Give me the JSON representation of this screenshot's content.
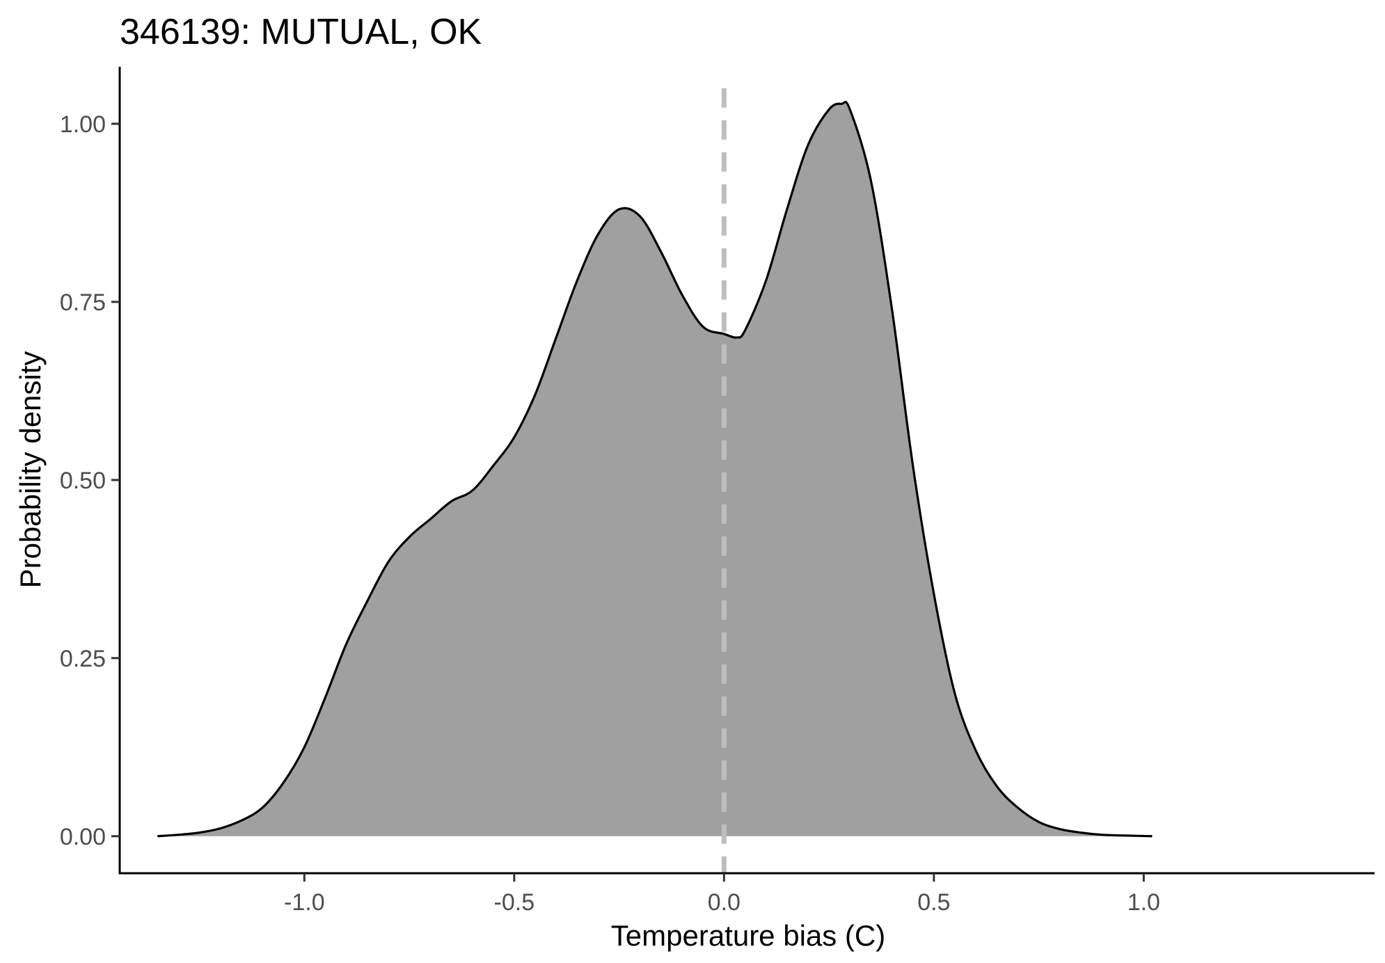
{
  "chart_data": {
    "type": "area",
    "title": "346139: MUTUAL, OK",
    "xlabel": "Temperature bias (C)",
    "ylabel": "Probability density",
    "xlim": [
      -1.44,
      1.55
    ],
    "ylim": [
      -0.052,
      1.08
    ],
    "x_ticks": [
      -1.0,
      -0.5,
      0.0,
      0.5,
      1.0
    ],
    "x_tick_labels": [
      "-1.0",
      "-0.5",
      "0.0",
      "0.5",
      "1.0"
    ],
    "y_ticks": [
      0.0,
      0.25,
      0.5,
      0.75,
      1.0
    ],
    "y_tick_labels": [
      "0.00",
      "0.25",
      "0.50",
      "0.75",
      "1.00"
    ],
    "reference_line": {
      "x": 0.0,
      "style": "dashed",
      "color": "#bebebe"
    },
    "fill_color": "#a0a0a0",
    "line_color": "#000000",
    "grid": false,
    "series": [
      {
        "name": "density",
        "x": [
          -1.35,
          -1.3,
          -1.25,
          -1.2,
          -1.15,
          -1.1,
          -1.05,
          -1.0,
          -0.95,
          -0.9,
          -0.85,
          -0.8,
          -0.75,
          -0.7,
          -0.65,
          -0.6,
          -0.55,
          -0.5,
          -0.45,
          -0.4,
          -0.35,
          -0.3,
          -0.25,
          -0.2,
          -0.15,
          -0.1,
          -0.05,
          0.0,
          0.03,
          0.05,
          0.1,
          0.15,
          0.2,
          0.25,
          0.28,
          0.3,
          0.35,
          0.4,
          0.45,
          0.5,
          0.55,
          0.6,
          0.65,
          0.7,
          0.75,
          0.8,
          0.85,
          0.9,
          0.95,
          1.02
        ],
        "y": [
          0.0,
          0.002,
          0.005,
          0.011,
          0.022,
          0.04,
          0.075,
          0.125,
          0.195,
          0.27,
          0.33,
          0.385,
          0.42,
          0.445,
          0.47,
          0.485,
          0.52,
          0.56,
          0.62,
          0.7,
          0.78,
          0.845,
          0.88,
          0.87,
          0.82,
          0.76,
          0.715,
          0.705,
          0.7,
          0.71,
          0.78,
          0.88,
          0.97,
          1.02,
          1.028,
          1.02,
          0.92,
          0.74,
          0.52,
          0.34,
          0.2,
          0.12,
          0.07,
          0.04,
          0.02,
          0.01,
          0.005,
          0.002,
          0.001,
          0.0
        ]
      }
    ]
  }
}
